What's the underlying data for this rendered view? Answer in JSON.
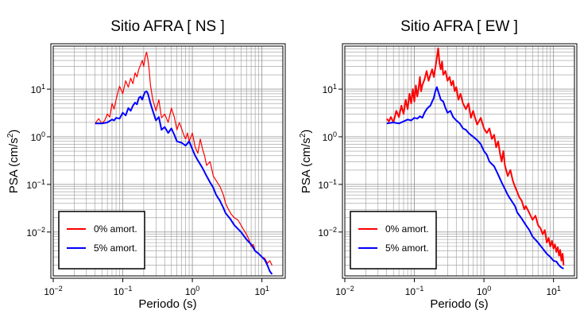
{
  "colors": {
    "undamped": "#ff0000",
    "damped": "#0000ff",
    "grid": "#9a9a9a",
    "frame": "#000000"
  },
  "chart_data": [
    {
      "type": "line",
      "title": "Sitio AFRA [ NS ]",
      "xlabel": "Periodo (s)",
      "ylabel_main": "PSA (cm/s",
      "ylabel_sup": "2",
      "ylabel_tail": ")",
      "xscale": "log",
      "yscale": "log",
      "xlim": [
        0.01,
        20
      ],
      "ylim": [
        0.0012,
        80
      ],
      "grid": true,
      "legend_position": "bottom-left",
      "x_tick_labels": [
        {
          "value": 0.01,
          "base": "10",
          "exp": "−2"
        },
        {
          "value": 0.1,
          "base": "10",
          "exp": "−1"
        },
        {
          "value": 1,
          "base": "10",
          "exp": "0"
        },
        {
          "value": 10,
          "base": "10",
          "exp": "1"
        }
      ],
      "y_tick_labels": [
        {
          "value": 0.01,
          "base": "10",
          "exp": "−2"
        },
        {
          "value": 0.1,
          "base": "10",
          "exp": "−1"
        },
        {
          "value": 1,
          "base": "10",
          "exp": "0"
        },
        {
          "value": 10,
          "base": "10",
          "exp": "1"
        }
      ],
      "series": [
        {
          "name": "0% amort.",
          "color": "#ff0000",
          "width": 1.2,
          "x": [
            0.04,
            0.045,
            0.05,
            0.055,
            0.06,
            0.065,
            0.07,
            0.075,
            0.08,
            0.085,
            0.09,
            0.1,
            0.11,
            0.12,
            0.13,
            0.14,
            0.15,
            0.16,
            0.17,
            0.18,
            0.19,
            0.2,
            0.21,
            0.22,
            0.23,
            0.24,
            0.25,
            0.27,
            0.3,
            0.33,
            0.36,
            0.4,
            0.45,
            0.5,
            0.55,
            0.6,
            0.65,
            0.7,
            0.75,
            0.8,
            0.85,
            0.9,
            1.0,
            1.1,
            1.2,
            1.3,
            1.4,
            1.5,
            1.6,
            1.8,
            2.0,
            2.2,
            2.5,
            2.8,
            3.0,
            3.3,
            3.6,
            4.0,
            4.5,
            5.0,
            5.5,
            6.0,
            6.5,
            7.0,
            7.5,
            8.0,
            9.0,
            10.0,
            11.0,
            12.0,
            13.0,
            14.0
          ],
          "y": [
            1.9,
            2.4,
            1.9,
            2.2,
            3.0,
            2.6,
            5.0,
            3.8,
            6.0,
            8.5,
            11.5,
            8.0,
            15.0,
            11.0,
            17.0,
            13.0,
            22.0,
            18.0,
            26.0,
            32.0,
            40.0,
            30.0,
            48.0,
            60.0,
            42.0,
            25.0,
            12.0,
            6.0,
            3.5,
            6.0,
            2.5,
            3.0,
            2.0,
            4.0,
            2.6,
            1.4,
            2.0,
            1.5,
            1.1,
            0.9,
            1.2,
            0.8,
            1.2,
            0.6,
            0.45,
            0.9,
            0.55,
            0.4,
            0.25,
            0.3,
            0.15,
            0.12,
            0.09,
            0.06,
            0.04,
            0.03,
            0.024,
            0.02,
            0.018,
            0.014,
            0.011,
            0.009,
            0.007,
            0.005,
            0.0055,
            0.004,
            0.0035,
            0.003,
            0.0028,
            0.0022,
            0.0025,
            0.002
          ]
        },
        {
          "name": "5% amort.",
          "color": "#0000ff",
          "width": 2,
          "x": [
            0.04,
            0.05,
            0.06,
            0.07,
            0.075,
            0.08,
            0.09,
            0.1,
            0.11,
            0.12,
            0.13,
            0.14,
            0.15,
            0.16,
            0.17,
            0.18,
            0.19,
            0.2,
            0.21,
            0.22,
            0.23,
            0.25,
            0.27,
            0.3,
            0.33,
            0.36,
            0.4,
            0.45,
            0.5,
            0.55,
            0.6,
            0.7,
            0.8,
            0.9,
            1.0,
            1.1,
            1.2,
            1.4,
            1.6,
            1.8,
            2.0,
            2.2,
            2.5,
            2.8,
            3.0,
            3.5,
            4.0,
            5.0,
            6.0,
            7.0,
            8.0,
            9.0,
            10.0,
            11.0,
            12.0,
            13.0,
            14.0
          ],
          "y": [
            1.9,
            1.9,
            2.0,
            2.3,
            2.2,
            2.5,
            2.4,
            3.2,
            2.8,
            4.0,
            3.5,
            4.5,
            5.2,
            4.8,
            6.5,
            7.0,
            6.0,
            7.5,
            8.8,
            9.0,
            8.0,
            5.0,
            3.5,
            2.2,
            2.6,
            1.4,
            1.6,
            1.2,
            1.5,
            1.1,
            0.8,
            0.75,
            0.65,
            0.8,
            0.55,
            0.4,
            0.32,
            0.22,
            0.15,
            0.11,
            0.085,
            0.06,
            0.045,
            0.032,
            0.025,
            0.019,
            0.014,
            0.01,
            0.007,
            0.0055,
            0.004,
            0.0035,
            0.003,
            0.0026,
            0.002,
            0.0015,
            0.0013
          ]
        }
      ]
    },
    {
      "type": "line",
      "title": "Sitio AFRA [ EW ]",
      "xlabel": "Periodo (s)",
      "ylabel_main": "PSA (cm/s",
      "ylabel_sup": "2",
      "ylabel_tail": ")",
      "xscale": "log",
      "yscale": "log",
      "xlim": [
        0.01,
        20
      ],
      "ylim": [
        0.0012,
        80
      ],
      "grid": true,
      "legend_position": "bottom-left",
      "x_tick_labels": [
        {
          "value": 0.01,
          "base": "10",
          "exp": "−2"
        },
        {
          "value": 0.1,
          "base": "10",
          "exp": "−1"
        },
        {
          "value": 1,
          "base": "10",
          "exp": "0"
        },
        {
          "value": 10,
          "base": "10",
          "exp": "1"
        }
      ],
      "y_tick_labels": [
        {
          "value": 0.01,
          "base": "10",
          "exp": "−2"
        },
        {
          "value": 0.1,
          "base": "10",
          "exp": "−1"
        },
        {
          "value": 1,
          "base": "10",
          "exp": "0"
        },
        {
          "value": 10,
          "base": "10",
          "exp": "1"
        }
      ],
      "series": [
        {
          "name": "0% amort.",
          "color": "#ff0000",
          "width": 2,
          "x": [
            0.04,
            0.043,
            0.046,
            0.05,
            0.055,
            0.06,
            0.065,
            0.07,
            0.075,
            0.08,
            0.085,
            0.09,
            0.095,
            0.1,
            0.105,
            0.11,
            0.115,
            0.12,
            0.125,
            0.13,
            0.14,
            0.15,
            0.16,
            0.17,
            0.18,
            0.19,
            0.2,
            0.21,
            0.22,
            0.23,
            0.24,
            0.25,
            0.26,
            0.28,
            0.3,
            0.32,
            0.34,
            0.36,
            0.38,
            0.4,
            0.43,
            0.46,
            0.5,
            0.55,
            0.6,
            0.65,
            0.7,
            0.75,
            0.8,
            0.9,
            1.0,
            1.1,
            1.2,
            1.3,
            1.4,
            1.5,
            1.6,
            1.7,
            1.8,
            1.9,
            2.0,
            2.2,
            2.4,
            2.6,
            2.8,
            3.0,
            3.2,
            3.5,
            3.8,
            4.0,
            4.5,
            5.0,
            5.5,
            6.0,
            6.5,
            7.0,
            7.5,
            8.0,
            8.5,
            9.0,
            9.5,
            10.0,
            10.5,
            11.0,
            11.5,
            12.0,
            12.5,
            13.0,
            13.5,
            14.0
          ],
          "y": [
            2.4,
            2.1,
            2.6,
            2.0,
            3.5,
            2.6,
            4.5,
            3.0,
            6.0,
            3.8,
            8.0,
            5.0,
            10.0,
            5.5,
            12.0,
            7.0,
            10.5,
            18.0,
            9.0,
            12.0,
            16.0,
            24.0,
            15.0,
            20.0,
            26.0,
            18.0,
            28.0,
            45.0,
            72.0,
            35.0,
            26.0,
            38.0,
            20.0,
            24.0,
            15.0,
            18.0,
            12.0,
            15.0,
            9.0,
            11.0,
            6.0,
            8.0,
            5.0,
            3.8,
            5.0,
            2.5,
            3.5,
            2.4,
            1.8,
            2.5,
            1.5,
            1.2,
            1.5,
            0.9,
            1.1,
            0.6,
            0.8,
            0.45,
            0.3,
            0.5,
            0.25,
            0.15,
            0.2,
            0.12,
            0.09,
            0.07,
            0.055,
            0.045,
            0.03,
            0.035,
            0.025,
            0.018,
            0.022,
            0.014,
            0.012,
            0.009,
            0.011,
            0.006,
            0.0075,
            0.005,
            0.0065,
            0.0045,
            0.0055,
            0.0038,
            0.0048,
            0.0032,
            0.0042,
            0.0025,
            0.0035,
            0.002
          ]
        },
        {
          "name": "5% amort.",
          "color": "#0000ff",
          "width": 2,
          "x": [
            0.04,
            0.05,
            0.06,
            0.07,
            0.08,
            0.09,
            0.1,
            0.11,
            0.12,
            0.13,
            0.14,
            0.15,
            0.16,
            0.17,
            0.18,
            0.19,
            0.2,
            0.21,
            0.22,
            0.24,
            0.26,
            0.28,
            0.3,
            0.33,
            0.36,
            0.4,
            0.45,
            0.5,
            0.55,
            0.6,
            0.7,
            0.8,
            0.9,
            1.0,
            1.1,
            1.2,
            1.4,
            1.6,
            1.8,
            2.0,
            2.2,
            2.5,
            2.8,
            3.0,
            3.5,
            4.0,
            4.5,
            5.0,
            6.0,
            7.0,
            8.0,
            9.0,
            10.0,
            11.0,
            12.0,
            13.0,
            14.0
          ],
          "y": [
            1.9,
            2.0,
            1.9,
            2.1,
            2.3,
            2.2,
            2.5,
            2.4,
            2.7,
            2.5,
            3.2,
            3.8,
            4.2,
            4.5,
            5.5,
            6.5,
            9.0,
            11.0,
            9.0,
            6.0,
            5.5,
            4.0,
            3.2,
            3.5,
            2.6,
            2.2,
            1.9,
            1.5,
            1.4,
            1.2,
            1.0,
            0.85,
            0.7,
            0.5,
            0.42,
            0.3,
            0.24,
            0.16,
            0.11,
            0.08,
            0.06,
            0.045,
            0.035,
            0.026,
            0.019,
            0.014,
            0.011,
            0.008,
            0.006,
            0.0045,
            0.0035,
            0.003,
            0.0025,
            0.0024,
            0.002,
            0.0018,
            0.0017
          ]
        }
      ]
    }
  ]
}
